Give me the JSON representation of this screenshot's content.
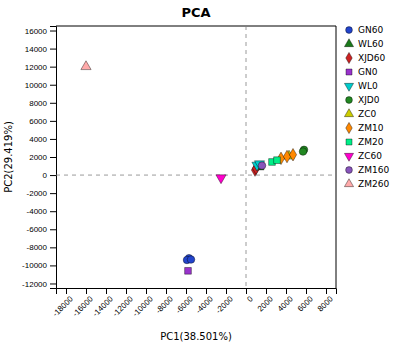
{
  "chart_data": {
    "type": "scatter",
    "title": "PCA",
    "xlabel": "PC1(38.501%)",
    "ylabel": "PC2(29.419%)",
    "xlim": [
      -19000,
      9000
    ],
    "ylim": [
      -12500,
      16500
    ],
    "xticks": [
      -18000,
      -16000,
      -14000,
      -12000,
      -10000,
      -8000,
      -6000,
      -4000,
      -2000,
      0,
      2000,
      4000,
      6000,
      8000
    ],
    "yticks": [
      -12000,
      -10000,
      -8000,
      -6000,
      -4000,
      -2000,
      0,
      2000,
      4000,
      6000,
      8000,
      10000,
      12000,
      14000,
      16000
    ],
    "grid": false,
    "legend": "right",
    "vline_x": 0,
    "hline_y": 0,
    "series": [
      {
        "name": "GN60",
        "marker": "circle",
        "color": "#2244cc",
        "x": [
          -5700,
          -5900,
          -5500
        ],
        "values": [
          -9200,
          -9400,
          -9350
        ]
      },
      {
        "name": "WL60",
        "marker": "triangle-up",
        "color": "#1a7a1a",
        "x": [
          1300
        ],
        "values": [
          900
        ]
      },
      {
        "name": "XJD60",
        "marker": "diamond",
        "color": "#cc2222",
        "x": [
          900,
          1000
        ],
        "values": [
          550,
          750
        ]
      },
      {
        "name": "GN0",
        "marker": "square",
        "color": "#9933cc",
        "x": [
          -5800
        ],
        "values": [
          -10600
        ]
      },
      {
        "name": "WL0",
        "marker": "triangle-down",
        "color": "#00cccc",
        "x": [
          1100,
          1350
        ],
        "values": [
          1100,
          1250
        ]
      },
      {
        "name": "XJD0",
        "marker": "circle",
        "color": "#228822",
        "x": [
          5800,
          5700
        ],
        "values": [
          2800,
          2600
        ]
      },
      {
        "name": "ZC0",
        "marker": "triangle-up",
        "color": "#cccc00",
        "x": [
          4300
        ],
        "values": [
          2100
        ]
      },
      {
        "name": "ZM10",
        "marker": "diamond",
        "color": "#ff8800",
        "x": [
          3500,
          4100,
          4700
        ],
        "values": [
          1850,
          2050,
          2250
        ]
      },
      {
        "name": "ZM20",
        "marker": "square",
        "color": "#00ee88",
        "x": [
          2600,
          3100
        ],
        "values": [
          1450,
          1650
        ]
      },
      {
        "name": "ZC60",
        "marker": "triangle-down",
        "color": "#ff00cc",
        "x": [
          -2500
        ],
        "values": [
          -300
        ]
      },
      {
        "name": "ZM160",
        "marker": "circle",
        "color": "#8855bb",
        "x": [
          1600
        ],
        "values": [
          1050
        ]
      },
      {
        "name": "ZM260",
        "marker": "triangle-up",
        "color": "#ffaaaa",
        "x": [
          -16000
        ],
        "values": [
          12000
        ]
      }
    ]
  }
}
